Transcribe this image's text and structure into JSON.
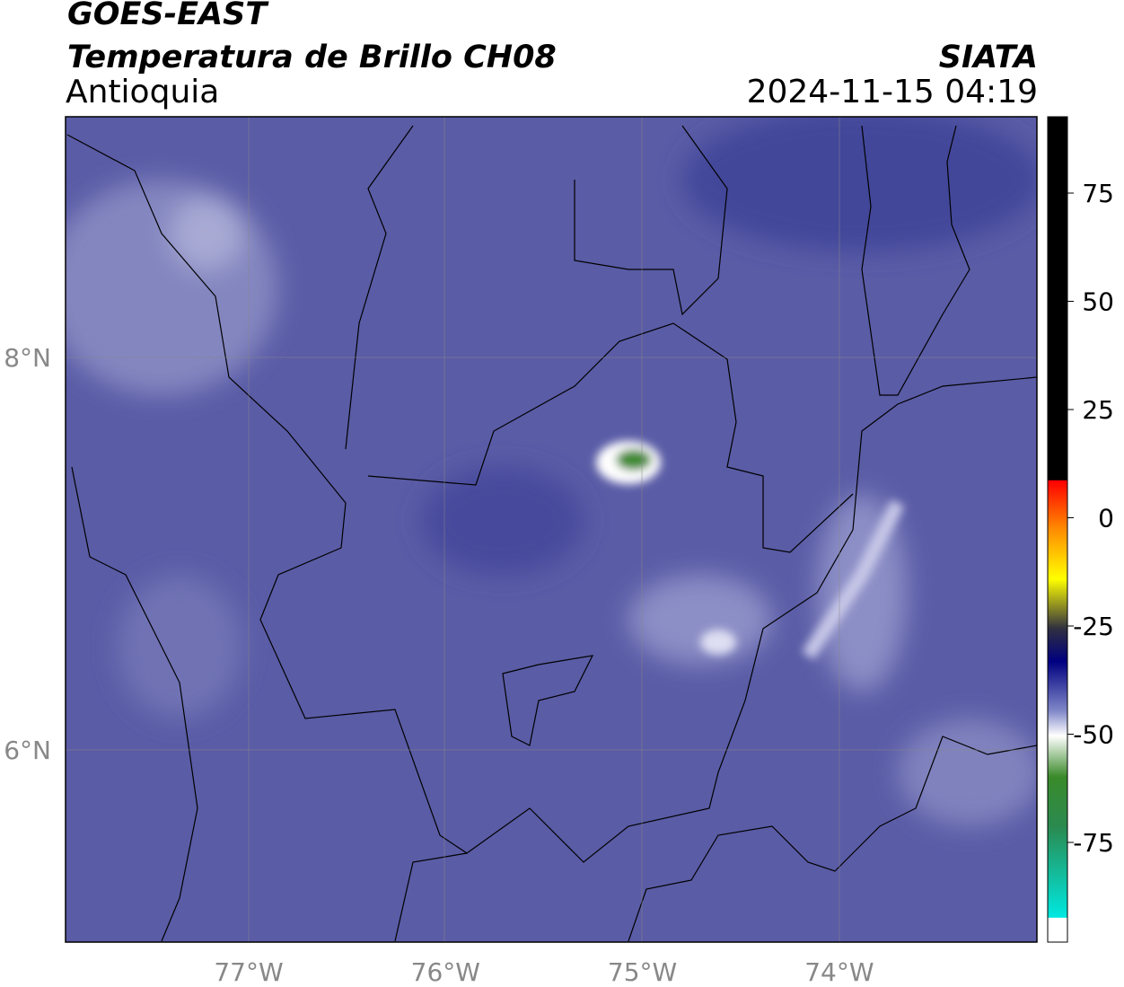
{
  "header": {
    "title": "GOES-EAST",
    "subtitle": "Temperatura de Brillo CH08",
    "region": "Antioquia",
    "source": "SIATA",
    "datetime": "2024-11-15 04:19"
  },
  "map": {
    "lon_labels": [
      "77°W",
      "76°W",
      "75°W",
      "74°W"
    ],
    "lat_labels": [
      "8°N",
      "6°N"
    ]
  },
  "colorbar": {
    "tick_labels": [
      "75",
      "50",
      "25",
      "0",
      "-25",
      "-50",
      "-75"
    ]
  }
}
